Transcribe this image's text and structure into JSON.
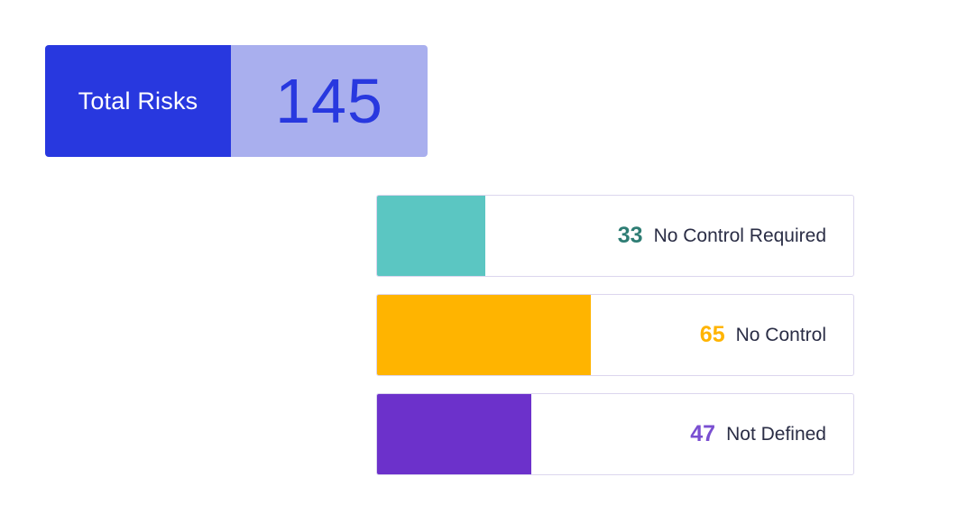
{
  "total": {
    "label": "Total Risks",
    "value": "145"
  },
  "chart_data": {
    "type": "bar",
    "orientation": "horizontal",
    "categories": [
      "No Control Required",
      "No Control",
      "Not Defined"
    ],
    "values": [
      33,
      65,
      47
    ],
    "total": 145,
    "colors": [
      "#5BC6C2",
      "#FFB400",
      "#6C31CB"
    ],
    "value_colors": [
      "#2E7D74",
      "#FFB400",
      "#7A4FD1"
    ]
  },
  "bars": [
    {
      "value": "33",
      "label": "No Control Required",
      "fraction": 0.2276
    },
    {
      "value": "65",
      "label": "No Control",
      "fraction": 0.4483
    },
    {
      "value": "47",
      "label": "Not Defined",
      "fraction": 0.3241
    }
  ]
}
